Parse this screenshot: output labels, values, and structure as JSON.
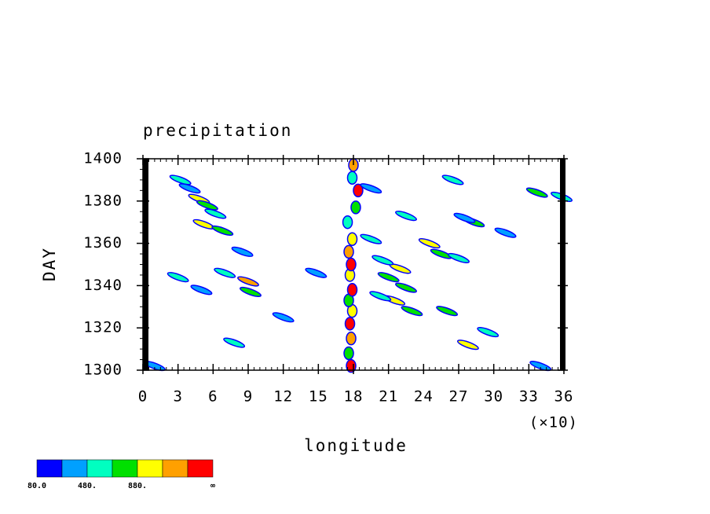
{
  "chart_data": {
    "type": "contour",
    "title": "precipitation",
    "x_label": "longitude",
    "y_label": "DAY",
    "x_multiplier": "(×10)",
    "xlim": [
      0,
      36
    ],
    "xticks": [
      0,
      3,
      6,
      9,
      12,
      15,
      18,
      21,
      24,
      27,
      30,
      33,
      36
    ],
    "ylim": [
      1300,
      1400
    ],
    "yticks": [
      1300,
      1320,
      1340,
      1360,
      1380,
      1400
    ],
    "x": [
      17.8,
      17.6,
      17.8,
      17.7,
      17.9,
      17.6,
      17.9,
      17.7,
      17.8,
      17.6,
      17.9,
      17.5,
      18.2,
      18.4,
      17.9,
      18,
      4.8,
      5.5,
      6.2,
      5.2,
      6.8,
      3.2,
      4,
      9,
      9.2,
      7,
      3,
      5,
      8.5,
      7.8,
      1,
      22,
      21,
      21.5,
      23,
      22.5,
      20.3,
      24.5,
      25.5,
      27,
      26,
      27.8,
      29.5,
      28.3,
      26.5,
      27.5,
      33.7,
      35.8,
      22.5,
      19.5,
      20.5,
      14.8,
      19.5,
      31,
      34,
      12
    ],
    "y": [
      1302,
      1308,
      1315,
      1322,
      1328,
      1333,
      1338,
      1345,
      1350,
      1356,
      1362,
      1370,
      1377,
      1385,
      1391,
      1397,
      1381,
      1378,
      1374,
      1369,
      1366,
      1390,
      1386,
      1342,
      1337,
      1346,
      1344,
      1338,
      1356,
      1313,
      1302,
      1348,
      1344,
      1333,
      1328,
      1339,
      1335,
      1360,
      1355,
      1353,
      1328,
      1312,
      1318,
      1370,
      1390,
      1372,
      1384,
      1382,
      1373,
      1386,
      1352,
      1346,
      1362,
      1365,
      1302,
      1325
    ],
    "values": [
      1300,
      700,
      1100,
      1300,
      900,
      700,
      1300,
      900,
      1300,
      1100,
      900,
      500,
      700,
      1300,
      500,
      1100,
      900,
      700,
      500,
      900,
      700,
      500,
      300,
      1100,
      700,
      500,
      500,
      300,
      300,
      500,
      300,
      900,
      700,
      900,
      700,
      700,
      500,
      900,
      700,
      500,
      700,
      900,
      500,
      700,
      500,
      300,
      700,
      500,
      500,
      300,
      500,
      300,
      500,
      300,
      300,
      300
    ],
    "levels": [
      80,
      280,
      480,
      680,
      880,
      1080,
      1280
    ],
    "colors": [
      "#0000ff",
      "#00a0ff",
      "#00ffc0",
      "#00e000",
      "#ffff00",
      "#ffa000",
      "#ff0000"
    ],
    "colorbar_labels": [
      "80.0",
      null,
      "480.",
      null,
      "880.",
      null,
      null,
      "∞"
    ]
  }
}
